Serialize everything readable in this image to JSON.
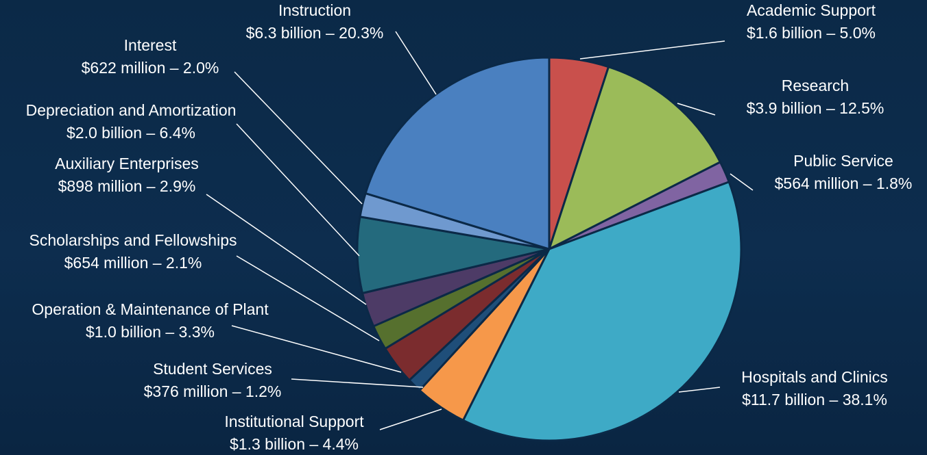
{
  "chart_data": {
    "type": "pie",
    "title": "",
    "legend": "none",
    "start_angle_deg": 0,
    "direction": "clockwise",
    "slices": [
      {
        "name": "Academic Support",
        "value_text": "$1.6 billion",
        "percent_text": "5.0%",
        "percent": 5.0,
        "color": "#c9504c"
      },
      {
        "name": "Research",
        "value_text": "$3.9 billion",
        "percent_text": "12.5%",
        "percent": 12.5,
        "color": "#9bbb59"
      },
      {
        "name": "Public Service",
        "value_text": "$564 million",
        "percent_text": "1.8%",
        "percent": 1.8,
        "color": "#8064a2"
      },
      {
        "name": "Hospitals and Clinics",
        "value_text": "$11.7 billion",
        "percent_text": "38.1%",
        "percent": 38.1,
        "color": "#3eaac6"
      },
      {
        "name": "Institutional Support",
        "value_text": "$1.3 billion",
        "percent_text": "4.4%",
        "percent": 4.4,
        "color": "#f6984a"
      },
      {
        "name": "Student Services",
        "value_text": "$376 million",
        "percent_text": "1.2%",
        "percent": 1.2,
        "color": "#1f4e79"
      },
      {
        "name": "Operation & Maintenance of Plant",
        "value_text": "$1.0 billion",
        "percent_text": "3.3%",
        "percent": 3.3,
        "color": "#7b2c2e"
      },
      {
        "name": "Scholarships and Fellowships",
        "value_text": "$654 million",
        "percent_text": "2.1%",
        "percent": 2.1,
        "color": "#56702e"
      },
      {
        "name": "Auxiliary Enterprises",
        "value_text": "$898 million",
        "percent_text": "2.9%",
        "percent": 2.9,
        "color": "#4d3b66"
      },
      {
        "name": "Depreciation and Amortization",
        "value_text": "$2.0 billion",
        "percent_text": "6.4%",
        "percent": 6.4,
        "color": "#246a7d"
      },
      {
        "name": "Interest",
        "value_text": "$622 million",
        "percent_text": "2.0%",
        "percent": 2.0,
        "color": "#6f99cf"
      },
      {
        "name": "Instruction",
        "value_text": "$6.3 billion",
        "percent_text": "20.3%",
        "percent": 20.3,
        "color": "#4a80c0"
      }
    ]
  }
}
